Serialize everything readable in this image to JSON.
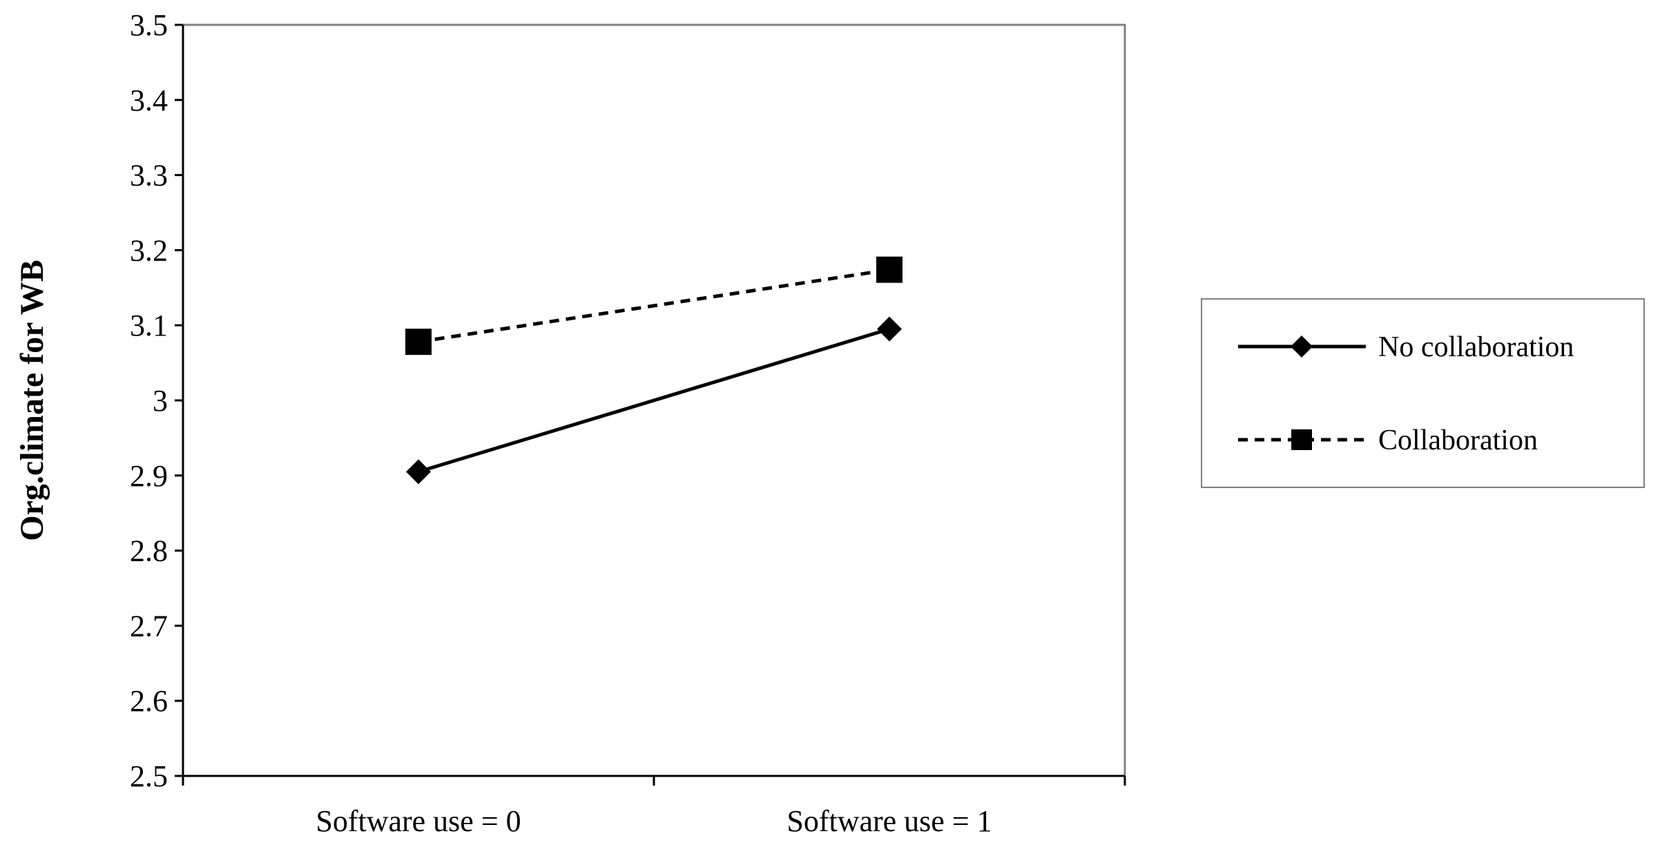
{
  "chart_data": {
    "type": "line",
    "title": "",
    "xlabel": "",
    "ylabel": "Org.climate for WB",
    "categories": [
      "Software use = 0",
      "Software use = 1"
    ],
    "ylim": [
      2.5,
      3.5
    ],
    "yticks": [
      "2.5",
      "2.6",
      "2.7",
      "2.8",
      "2.9",
      "3",
      "3.1",
      "3.2",
      "3.3",
      "3.4",
      "3.5"
    ],
    "grid": false,
    "legend_position": "right",
    "series": [
      {
        "name": "No collaboration",
        "values": [
          2.905,
          3.095
        ],
        "line_style": "solid",
        "marker": "diamond",
        "color": "#000000"
      },
      {
        "name": "Collaboration",
        "values": [
          3.078,
          3.174
        ],
        "line_style": "dashed",
        "marker": "square",
        "color": "#000000"
      }
    ]
  }
}
